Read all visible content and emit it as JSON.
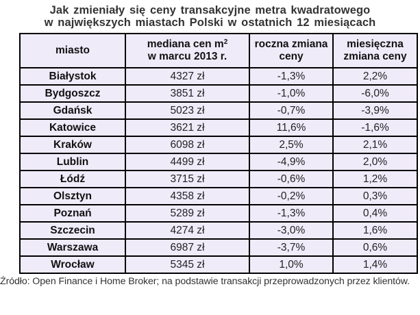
{
  "title": {
    "line1": "Jak zmieniały się ceny transakcyjne  metra kwadratowego",
    "line2": "w największych miastach Polski w ostatnich 12 miesiącach"
  },
  "table": {
    "headers": {
      "city": "miasto",
      "median_line1": "mediana cen m",
      "median_sup": "2",
      "median_line2": "w marcu 2013 r.",
      "annual_line1": "roczna zmiana",
      "annual_line2": "ceny",
      "monthly_line1": "miesięczna",
      "monthly_line2": "zmiana ceny"
    },
    "rows": [
      {
        "city": "Białystok",
        "median": "4327 zł",
        "annual": "-1,3%",
        "monthly": "2,2%"
      },
      {
        "city": "Bydgoszcz",
        "median": "3851 zł",
        "annual": "-1,0%",
        "monthly": "-6,0%"
      },
      {
        "city": "Gdańsk",
        "median": "5023 zł",
        "annual": "-0,7%",
        "monthly": "-3,9%"
      },
      {
        "city": "Katowice",
        "median": "3621 zł",
        "annual": "11,6%",
        "monthly": "-1,6%"
      },
      {
        "city": "Kraków",
        "median": "6098 zł",
        "annual": "2,5%",
        "monthly": "2,1%"
      },
      {
        "city": "Lublin",
        "median": "4499 zł",
        "annual": "-4,9%",
        "monthly": "2,0%"
      },
      {
        "city": "Łódź",
        "median": "3715 zł",
        "annual": "-0,6%",
        "monthly": "1,2%"
      },
      {
        "city": "Olsztyn",
        "median": "4358 zł",
        "annual": "-0,2%",
        "monthly": "0,3%"
      },
      {
        "city": "Poznań",
        "median": "5289 zł",
        "annual": "-1,3%",
        "monthly": "0,4%"
      },
      {
        "city": "Szczecin",
        "median": "4274 zł",
        "annual": "-3,0%",
        "monthly": "1,6%"
      },
      {
        "city": "Warszawa",
        "median": "6987 zł",
        "annual": "-3,7%",
        "monthly": "0,6%"
      },
      {
        "city": "Wrocław",
        "median": "5345 zł",
        "annual": "1,0%",
        "monthly": "1,4%"
      }
    ]
  },
  "source": "Źródło: Open Finance i Home Broker; na podstawie transakcji przeprowadzonych przez klientów.",
  "colors": {
    "table_background": "#efebf9",
    "border": "#000000",
    "title_text": "#333333"
  }
}
